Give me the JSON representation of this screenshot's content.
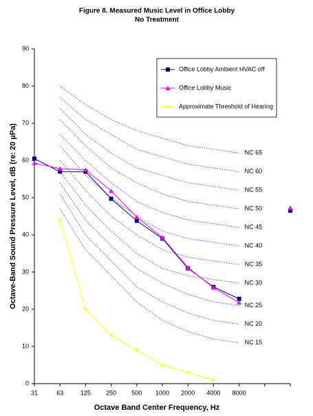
{
  "chart_data": {
    "type": "line",
    "title": "Figure 8. Measured Music Level in Office Lobby",
    "subtitle": "No Treatment",
    "x_label": "Octave Band Center Frequency, Hz",
    "y_label": "Octave-Band Sound Pressure Level, dB (re: 20 µPa)",
    "categories": [
      "31",
      "63",
      "125",
      "250",
      "500",
      "1000",
      "2000",
      "4000",
      "8000",
      null,
      null
    ],
    "ylim": [
      0,
      90
    ],
    "yticks": [
      0,
      10,
      20,
      30,
      40,
      50,
      60,
      70,
      80,
      90
    ],
    "grid": false,
    "legend_position": "upper right",
    "series": [
      {
        "name": "Office Lobby Ambient HVAC off",
        "color": "#000080",
        "marker": "square",
        "values": [
          60.5,
          57,
          57,
          49.7,
          43.8,
          39,
          31,
          26,
          22.8,
          null,
          46.5
        ]
      },
      {
        "name": "Office Lobby Music",
        "color": "#ff00ff",
        "marker": "triangle",
        "values": [
          59.3,
          57.8,
          57.5,
          51.8,
          44.8,
          39.3,
          31.2,
          25.8,
          21.8,
          null,
          47.3
        ]
      },
      {
        "name": "Approximate Threshold of Hearing",
        "color": "#ffff00",
        "marker": "diamond",
        "values": [
          null,
          44,
          20,
          13,
          9,
          5,
          3,
          1,
          null,
          null,
          null
        ]
      }
    ],
    "nc_curves": [
      {
        "name": "NC 65",
        "color": "#4444ff",
        "values": [
          null,
          80,
          75,
          71,
          68,
          66,
          64,
          63,
          62,
          null,
          null
        ]
      },
      {
        "name": "NC 60",
        "color": "#4444ff",
        "values": [
          null,
          77,
          71,
          67,
          63,
          61,
          59,
          58,
          57,
          null,
          null
        ]
      },
      {
        "name": "NC 55",
        "color": "#4444ff",
        "values": [
          null,
          74,
          67,
          62,
          58,
          56,
          54,
          53,
          52,
          null,
          null
        ]
      },
      {
        "name": "NC 50",
        "color": "#4444ff",
        "values": [
          null,
          71,
          64,
          58,
          54,
          51,
          49,
          48,
          47,
          null,
          null
        ]
      },
      {
        "name": "NC 45",
        "color": "#4444ff",
        "values": [
          null,
          67,
          60,
          54,
          49,
          46,
          44,
          43,
          42,
          null,
          null
        ]
      },
      {
        "name": "NC 40",
        "color": "#4444ff",
        "values": [
          null,
          64,
          56,
          50,
          45,
          41,
          39,
          38,
          37,
          null,
          null
        ]
      },
      {
        "name": "NC 35",
        "color": "#4444ff",
        "values": [
          null,
          60,
          52,
          45,
          40,
          36,
          34,
          33,
          32,
          null,
          null
        ]
      },
      {
        "name": "NC 30",
        "color": "#4444ff",
        "values": [
          null,
          57,
          48,
          41,
          35,
          31,
          29,
          28,
          27,
          null,
          null
        ]
      },
      {
        "name": "NC 25",
        "color": "#4444ff",
        "values": [
          null,
          54,
          44,
          37,
          31,
          27,
          24,
          22,
          21,
          null,
          null
        ]
      },
      {
        "name": "NC 20",
        "color": "#4444ff",
        "values": [
          null,
          51,
          40,
          33,
          26,
          22,
          19,
          17,
          16,
          null,
          null
        ]
      },
      {
        "name": "NC 15",
        "color": "#4444ff",
        "values": [
          null,
          47,
          36,
          29,
          22,
          17,
          14,
          12,
          11,
          null,
          null
        ]
      }
    ]
  }
}
